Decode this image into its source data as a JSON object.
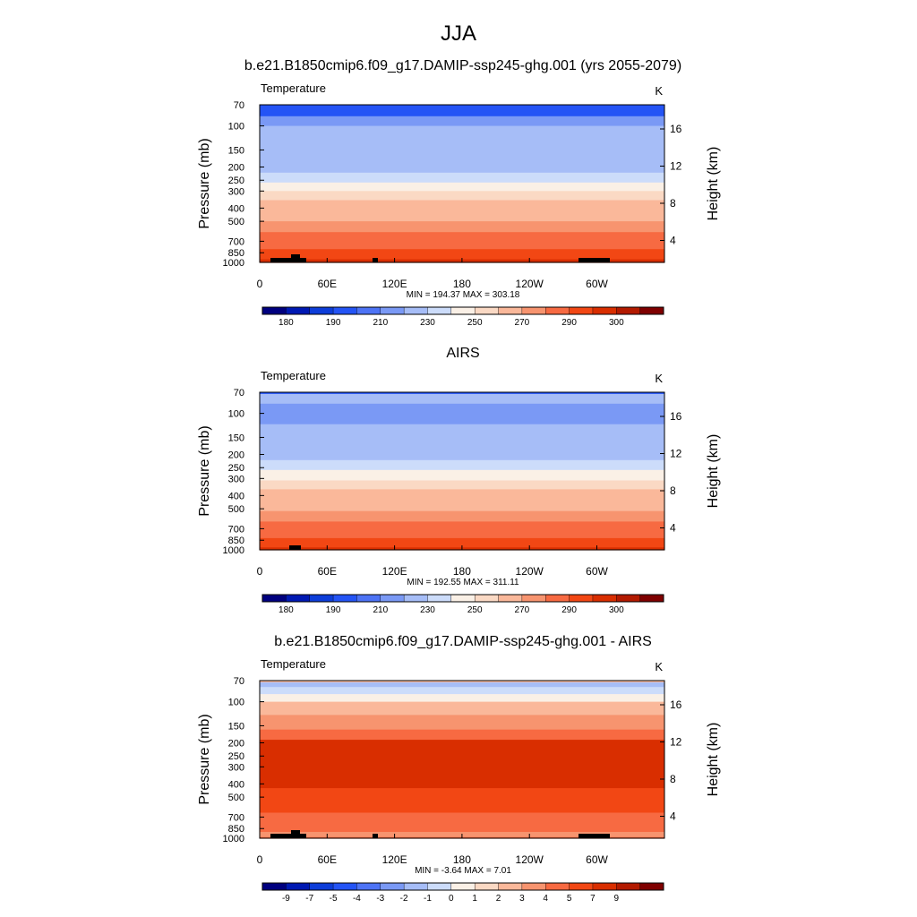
{
  "page": {
    "title": "JJA"
  },
  "colorbar": {
    "colors": [
      "#00007F",
      "#0019B3",
      "#0D3DD9",
      "#2454F5",
      "#4D73F5",
      "#7A99F5",
      "#A6BDF7",
      "#CCDCFA",
      "#FAF0E6",
      "#FAD9C4",
      "#FAB89A",
      "#F7946F",
      "#F76A42",
      "#F24714",
      "#D92E00",
      "#B31A00",
      "#7F0000"
    ],
    "abs_labels": [
      "180",
      "190",
      "210",
      "230",
      "250",
      "270",
      "290",
      "300"
    ],
    "diff_labels": [
      "-9",
      "-7",
      "-5",
      "-4",
      "-3",
      "-2",
      "-1",
      "0",
      "1",
      "2",
      "3",
      "4",
      "5",
      "7",
      "9"
    ]
  },
  "panels": [
    {
      "title": "b.e21.B1850cmip6.f09_g17.DAMIP-ssp245-ghg.001 (yrs 2055-2079)",
      "left_label": "Temperature",
      "right_label": "K",
      "stats": "MIN = 194.37  MAX = 303.18",
      "kind": "abs"
    },
    {
      "title": "AIRS",
      "left_label": "Temperature",
      "right_label": "K",
      "stats": "MIN = 192.55  MAX = 311.11",
      "kind": "abs"
    },
    {
      "title": "b.e21.B1850cmip6.f09_g17.DAMIP-ssp245-ghg.001 - AIRS",
      "left_label": "Temperature",
      "right_label": "K",
      "stats": "MIN =  -3.64  MAX =   7.01",
      "kind": "diff"
    }
  ],
  "axes": {
    "ylabel": "Pressure (mb)",
    "y2label": "Height (km)",
    "pressure_ticks": [
      "70",
      "100",
      "150",
      "200",
      "250",
      "300",
      "400",
      "500",
      "700",
      "850",
      "1000"
    ],
    "height_ticks": [
      "4",
      "8",
      "12",
      "16"
    ],
    "lon_ticks": [
      "0",
      "60E",
      "120E",
      "180",
      "120W",
      "60W"
    ]
  },
  "chart_data": [
    {
      "type": "heatmap",
      "title": "b.e21.B1850cmip6.f09_g17.DAMIP-ssp245-ghg.001 (yrs 2055-2079)",
      "variable": "Temperature",
      "units": "K",
      "xlabel": "",
      "ylabel": "Pressure (mb)",
      "y2label": "Height (km)",
      "x_ticks": [
        "0",
        "60E",
        "120E",
        "180",
        "120W",
        "60W"
      ],
      "y_ticks": [
        70,
        100,
        150,
        200,
        250,
        300,
        400,
        500,
        700,
        850,
        1000
      ],
      "y_scale": "log",
      "y_reversed": true,
      "colorbar_labels": [
        180,
        190,
        210,
        230,
        250,
        270,
        290,
        300
      ],
      "min": 194.37,
      "max": 303.18,
      "levels": [
        {
          "p": 85,
          "v": 205
        },
        {
          "p": 100,
          "v": 210
        },
        {
          "p": 130,
          "v": 213
        },
        {
          "p": 170,
          "v": 217
        },
        {
          "p": 220,
          "v": 224
        },
        {
          "p": 260,
          "v": 233
        },
        {
          "p": 300,
          "v": 242
        },
        {
          "p": 350,
          "v": 250
        },
        {
          "p": 420,
          "v": 258
        },
        {
          "p": 500,
          "v": 264
        },
        {
          "p": 600,
          "v": 270
        },
        {
          "p": 700,
          "v": 276
        },
        {
          "p": 800,
          "v": 282
        },
        {
          "p": 880,
          "v": 287
        },
        {
          "p": 950,
          "v": 292
        }
      ]
    },
    {
      "type": "heatmap",
      "title": "AIRS",
      "variable": "Temperature",
      "units": "K",
      "xlabel": "",
      "ylabel": "Pressure (mb)",
      "y2label": "Height (km)",
      "x_ticks": [
        "0",
        "60E",
        "120E",
        "180",
        "120W",
        "60W"
      ],
      "y_ticks": [
        70,
        100,
        150,
        200,
        250,
        300,
        400,
        500,
        700,
        850,
        1000
      ],
      "y_scale": "log",
      "y_reversed": true,
      "colorbar_labels": [
        180,
        190,
        210,
        230,
        250,
        270,
        290,
        300
      ],
      "min": 192.55,
      "max": 311.11,
      "levels": [
        {
          "p": 72,
          "v": 214
        },
        {
          "p": 85,
          "v": 205
        },
        {
          "p": 120,
          "v": 212
        },
        {
          "p": 170,
          "v": 216
        },
        {
          "p": 220,
          "v": 224
        },
        {
          "p": 260,
          "v": 232
        },
        {
          "p": 310,
          "v": 242
        },
        {
          "p": 360,
          "v": 251
        },
        {
          "p": 430,
          "v": 258
        },
        {
          "p": 520,
          "v": 265
        },
        {
          "p": 620,
          "v": 271
        },
        {
          "p": 720,
          "v": 277
        },
        {
          "p": 820,
          "v": 283
        },
        {
          "p": 900,
          "v": 288
        },
        {
          "p": 960,
          "v": 294
        }
      ]
    },
    {
      "type": "heatmap",
      "title": "b.e21.B1850cmip6.f09_g17.DAMIP-ssp245-ghg.001 - AIRS",
      "variable": "Temperature",
      "units": "K",
      "xlabel": "",
      "ylabel": "Pressure (mb)",
      "y2label": "Height (km)",
      "x_ticks": [
        "0",
        "60E",
        "120E",
        "180",
        "120W",
        "60W"
      ],
      "y_ticks": [
        70,
        100,
        150,
        200,
        250,
        300,
        400,
        500,
        700,
        850,
        1000
      ],
      "y_scale": "log",
      "y_reversed": true,
      "colorbar_labels": [
        -9,
        -7,
        -5,
        -4,
        -3,
        -2,
        -1,
        0,
        1,
        2,
        3,
        4,
        5,
        7,
        9
      ],
      "min": -3.64,
      "max": 7.01,
      "levels": [
        {
          "p": 72,
          "v": -2.5
        },
        {
          "p": 78,
          "v": -1.5
        },
        {
          "p": 88,
          "v": -0.5
        },
        {
          "p": 100,
          "v": 1.5
        },
        {
          "p": 125,
          "v": 2.5
        },
        {
          "p": 160,
          "v": 3.5
        },
        {
          "p": 190,
          "v": 5.5
        },
        {
          "p": 430,
          "v": 4.5
        },
        {
          "p": 650,
          "v": 3.5
        },
        {
          "p": 900,
          "v": 2.5
        },
        {
          "p": 980,
          "v": 3.5
        }
      ]
    }
  ]
}
